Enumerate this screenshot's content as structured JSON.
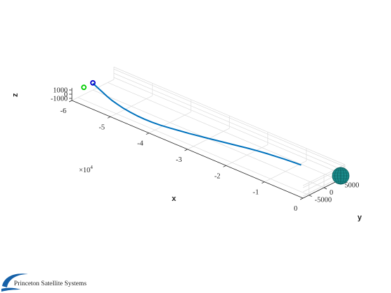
{
  "chart_data": {
    "type": "line",
    "title": "",
    "xlabel": "x",
    "ylabel": "y",
    "zlabel": "z",
    "x_exponent_base": "×10",
    "x_exponent_power": "4",
    "x_ticks": [
      {
        "value": -6,
        "label": "-6"
      },
      {
        "value": -5,
        "label": "-5"
      },
      {
        "value": -4,
        "label": "-4"
      },
      {
        "value": -3,
        "label": "-3"
      },
      {
        "value": -2,
        "label": "-2"
      },
      {
        "value": -1,
        "label": "-1"
      },
      {
        "value": 0,
        "label": "0"
      }
    ],
    "y_ticks": [
      {
        "value": 5000,
        "label": "5000"
      },
      {
        "value": 0,
        "label": "0"
      },
      {
        "value": -5000,
        "label": "-5000"
      }
    ],
    "z_ticks": [
      {
        "value": 1000,
        "label": "1000"
      },
      {
        "value": 0,
        "label": "0"
      },
      {
        "value": -1000,
        "label": "-1000"
      }
    ],
    "xlim": [
      -60000,
      0
    ],
    "ylim": [
      -7000,
      7000
    ],
    "zlim": [
      -1500,
      1500
    ],
    "grid": true,
    "series": [
      {
        "color": "#0072BD",
        "x": [
          -60000,
          -58000,
          -56000,
          -54000,
          -52000,
          -50000,
          -48000,
          -46000,
          -44000,
          -42000,
          -40000,
          -38000,
          -36000,
          -34000,
          -32000,
          -30000,
          -28000,
          -26000,
          -24000,
          -22000,
          -20000,
          -18000,
          -16000,
          -14000,
          -12000,
          -10000,
          -8000
        ],
        "y": [
          0,
          -1000,
          -2000,
          -3000,
          -3900,
          -4600,
          -5200,
          -5600,
          -5900,
          -6000,
          -5900,
          -5600,
          -5100,
          -4500,
          -3900,
          -3200,
          -2500,
          -1800,
          -1100,
          -400,
          300,
          900,
          1400,
          1800,
          2200,
          2500,
          2700
        ],
        "z": [
          100,
          200,
          300,
          400,
          500,
          580,
          640,
          680,
          700,
          690,
          660,
          610,
          550,
          480,
          400,
          330,
          260,
          200,
          140,
          80,
          30,
          -20,
          -60,
          -100,
          -130,
          -160,
          -180
        ]
      }
    ],
    "markers": [
      {
        "label": "",
        "color": "#0000cc",
        "x": -60000,
        "y": 0,
        "z": 200
      },
      {
        "label": "",
        "color": "#00cc00",
        "x": -60000,
        "y": -3000,
        "z": 200
      }
    ],
    "body_at_origin": {
      "color": "#1a8a8a",
      "x": 0,
      "y": 0,
      "z": 0
    }
  },
  "logo": {
    "text": "Princeton Satellite Systems",
    "color": "#1560a8"
  }
}
